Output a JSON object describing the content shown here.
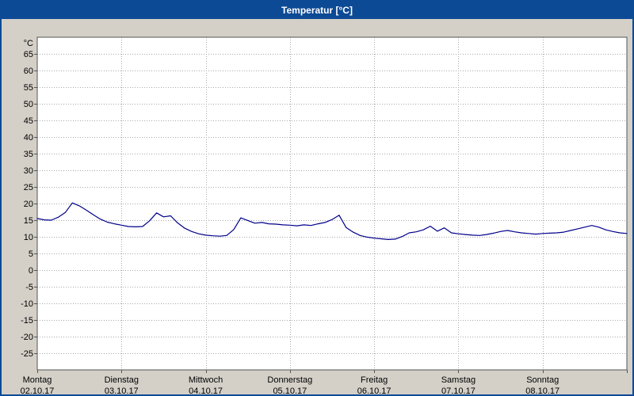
{
  "window": {
    "title": "Temperatur [°C]"
  },
  "colors": {
    "titlebar": "#0d4a96",
    "titlebar_text": "#ffffff",
    "window_background": "#d4d0c8",
    "plot_background": "#ffffff",
    "grid": "#a8a8a8",
    "axis": "#555555",
    "line": "#00008b",
    "text": "#000000"
  },
  "chart_data": {
    "type": "line",
    "title": "Temperatur [°C]",
    "ylabel": "°C",
    "ylim": [
      -30,
      70
    ],
    "yticks": [
      65,
      60,
      55,
      50,
      45,
      40,
      35,
      30,
      25,
      20,
      15,
      10,
      5,
      0,
      -5,
      -10,
      -15,
      -20,
      -25
    ],
    "grid": true,
    "legend": "none",
    "days": [
      {
        "name": "Montag",
        "date": "02.10.17"
      },
      {
        "name": "Dienstag",
        "date": "03.10.17"
      },
      {
        "name": "Mittwoch",
        "date": "04.10.17"
      },
      {
        "name": "Donnerstag",
        "date": "05.10.17"
      },
      {
        "name": "Freitag",
        "date": "06.10.17"
      },
      {
        "name": "Samstag",
        "date": "07.10.17"
      },
      {
        "name": "Sonntag",
        "date": "08.10.17"
      }
    ],
    "sample_interval_hours": 2,
    "series": [
      {
        "name": "Temperatur",
        "unit": "°C",
        "values": [
          15.5,
          15.1,
          15.0,
          15.9,
          17.3,
          20.2,
          19.3,
          18.0,
          16.6,
          15.3,
          14.4,
          13.9,
          13.5,
          13.1,
          13.0,
          13.1,
          14.8,
          17.2,
          16.0,
          16.3,
          14.2,
          12.6,
          11.6,
          10.9,
          10.5,
          10.3,
          10.2,
          10.4,
          12.2,
          15.7,
          14.9,
          14.1,
          14.3,
          13.9,
          13.8,
          13.6,
          13.5,
          13.3,
          13.6,
          13.4,
          13.9,
          14.3,
          15.2,
          16.5,
          12.8,
          11.4,
          10.4,
          9.9,
          9.6,
          9.4,
          9.2,
          9.3,
          10.1,
          11.2,
          11.5,
          12.1,
          13.2,
          11.7,
          12.7,
          11.2,
          10.9,
          10.7,
          10.5,
          10.4,
          10.7,
          11.1,
          11.6,
          11.9,
          11.5,
          11.2,
          11.0,
          10.8,
          11.0,
          11.1,
          11.2,
          11.4,
          11.9,
          12.4,
          12.9,
          13.4,
          12.9,
          12.1,
          11.6,
          11.2,
          11.0
        ]
      }
    ]
  }
}
